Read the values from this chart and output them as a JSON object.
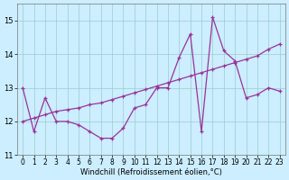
{
  "series1_x": [
    0,
    1,
    2,
    3,
    4,
    5,
    6,
    7,
    8,
    9,
    10,
    11,
    12,
    13,
    14,
    15,
    16,
    17,
    18,
    19,
    20,
    21,
    22,
    23
  ],
  "series1_y": [
    13.0,
    11.7,
    12.7,
    12.0,
    12.0,
    11.9,
    11.7,
    11.5,
    11.5,
    11.8,
    12.4,
    12.5,
    13.0,
    13.0,
    13.9,
    14.6,
    11.7,
    15.1,
    14.1,
    13.8,
    12.7,
    12.8,
    13.0,
    12.9
  ],
  "series2_x": [
    0,
    1,
    2,
    3,
    4,
    5,
    6,
    7,
    8,
    9,
    10,
    11,
    12,
    13,
    14,
    15,
    16,
    17,
    18,
    19,
    20,
    21,
    22,
    23
  ],
  "series2_y": [
    12.0,
    12.1,
    12.2,
    12.3,
    12.35,
    12.4,
    12.5,
    12.55,
    12.65,
    12.75,
    12.85,
    12.95,
    13.05,
    13.15,
    13.25,
    13.35,
    13.45,
    13.55,
    13.65,
    13.75,
    13.85,
    13.95,
    14.15,
    14.3
  ],
  "line_color": "#993399",
  "bg_color": "#cceeff",
  "grid_color": "#99cccc",
  "xlabel": "Windchill (Refroidissement éolien,°C)",
  "ylabel_ticks": [
    11,
    12,
    13,
    14,
    15
  ],
  "xticks": [
    0,
    1,
    2,
    3,
    4,
    5,
    6,
    7,
    8,
    9,
    10,
    11,
    12,
    13,
    14,
    15,
    16,
    17,
    18,
    19,
    20,
    21,
    22,
    23
  ],
  "ylim": [
    11.0,
    15.5
  ],
  "xlim": [
    -0.5,
    23.5
  ],
  "tick_fontsize": 5.5,
  "xlabel_fontsize": 6.0
}
